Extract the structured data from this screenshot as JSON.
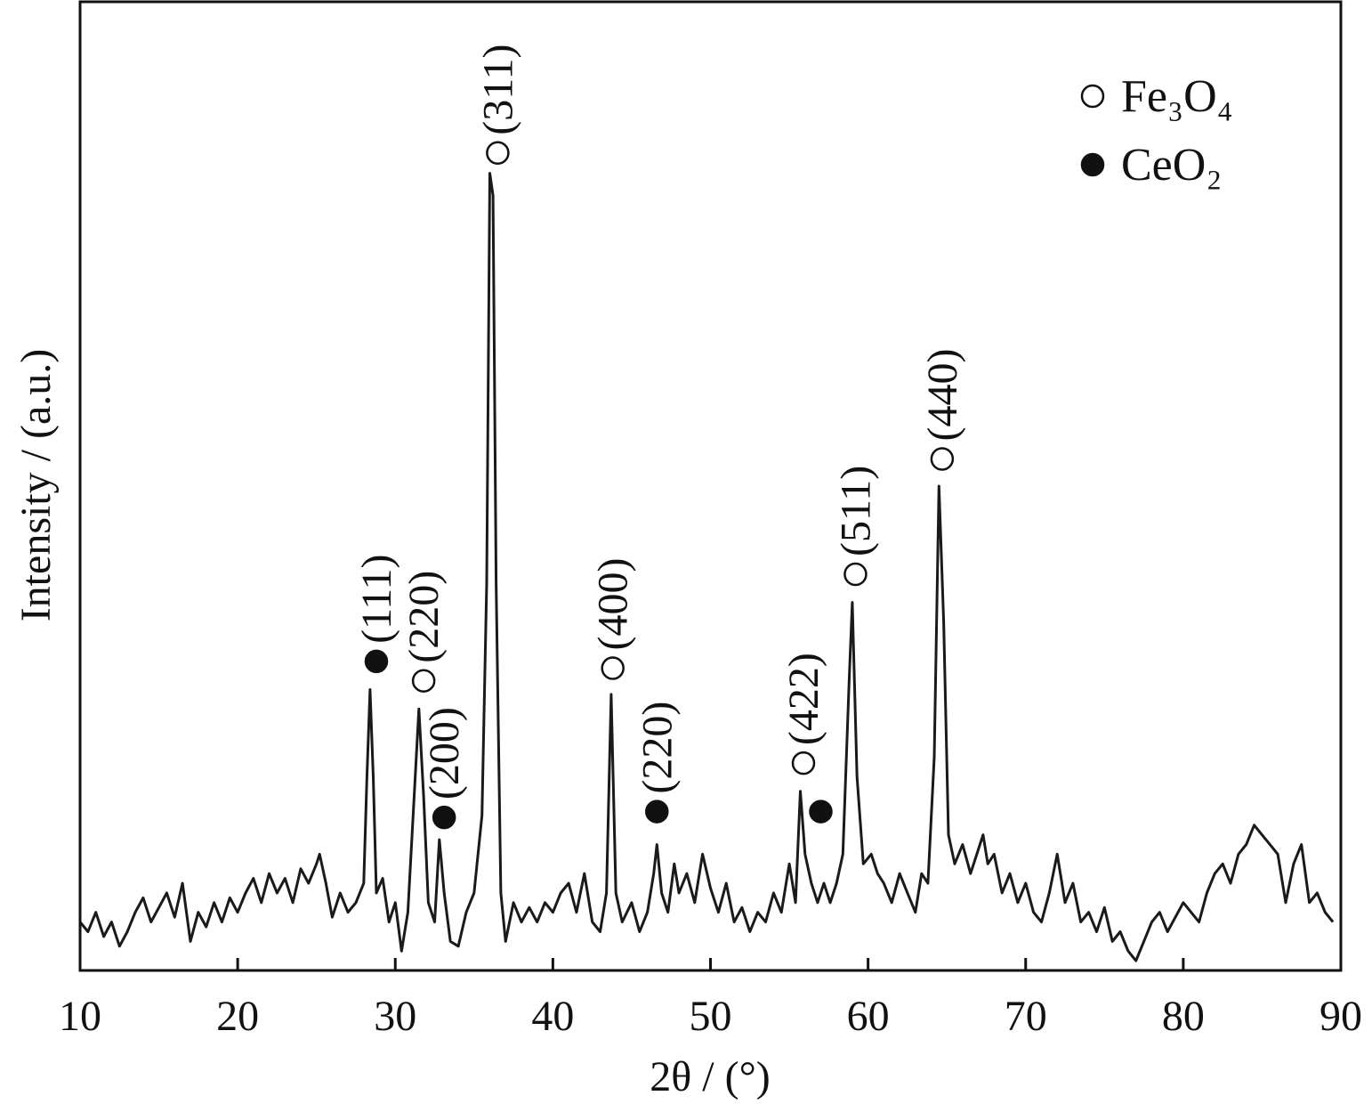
{
  "chart_data": {
    "type": "line",
    "x_label": "2θ / (°)",
    "y_label": "Intensity / (a.u.)",
    "xlim": [
      10,
      90
    ],
    "xticks": [
      10,
      20,
      30,
      40,
      50,
      60,
      70,
      80,
      90
    ],
    "ylim": [
      0,
      100
    ],
    "color": "#1a1a1a",
    "legend": [
      {
        "name": "Fe₃O₄",
        "marker": "open"
      },
      {
        "name": "CeO₂",
        "marker": "filled"
      }
    ],
    "x": [
      10,
      10.5,
      11,
      11.5,
      12,
      12.5,
      13,
      13.5,
      14,
      14.5,
      15,
      15.5,
      16,
      16.5,
      17,
      17.5,
      18,
      18.5,
      19,
      19.5,
      20,
      20.5,
      21,
      21.5,
      22,
      22.5,
      23,
      23.5,
      24,
      24.5,
      25,
      25.2,
      25.6,
      26,
      26.5,
      27,
      27.5,
      28,
      28.2,
      28.4,
      28.6,
      28.8,
      29.2,
      29.6,
      30,
      30.4,
      30.8,
      31.2,
      31.5,
      31.8,
      32.1,
      32.5,
      32.8,
      33.1,
      33.5,
      34,
      34.5,
      35,
      35.5,
      35.8,
      36,
      36.2,
      36.4,
      36.7,
      37,
      37.5,
      38,
      38.5,
      39,
      39.5,
      40,
      40.5,
      41,
      41.5,
      42,
      42.5,
      43,
      43.4,
      43.7,
      44,
      44.4,
      45,
      45.5,
      46,
      46.4,
      46.6,
      46.9,
      47.3,
      47.7,
      48,
      48.5,
      49,
      49.5,
      50,
      50.5,
      51,
      51.5,
      52,
      52.5,
      53,
      53.5,
      54,
      54.5,
      55,
      55.4,
      55.7,
      56,
      56.4,
      56.8,
      57.2,
      57.6,
      58,
      58.4,
      58.8,
      59,
      59.3,
      59.7,
      60.2,
      60.6,
      61,
      61.5,
      62,
      62.5,
      63,
      63.4,
      63.8,
      64.2,
      64.5,
      64.8,
      65.1,
      65.5,
      66,
      66.5,
      67,
      67.3,
      67.6,
      68,
      68.5,
      69,
      69.5,
      70,
      70.5,
      71,
      71.5,
      72,
      72.5,
      73,
      73.5,
      74,
      74.5,
      75,
      75.5,
      76,
      76.5,
      77,
      77.5,
      78,
      78.5,
      79,
      79.5,
      80,
      80.5,
      81,
      81.5,
      82,
      82.5,
      83,
      83.5,
      84,
      84.5,
      85,
      85.5,
      86,
      86.5,
      87,
      87.5,
      88,
      88.5,
      89,
      89.5
    ],
    "values": [
      5,
      4,
      6,
      3.5,
      5,
      2.5,
      4,
      6,
      7.5,
      5,
      6.5,
      8,
      5.5,
      9,
      3,
      6,
      4.5,
      7,
      5,
      7.5,
      6,
      8,
      9.5,
      7,
      10,
      8,
      9.5,
      7,
      10.5,
      9,
      11,
      12,
      9,
      5.5,
      8,
      6,
      7,
      9,
      20,
      29,
      20,
      8,
      9.5,
      5,
      7,
      2,
      6,
      18,
      27,
      18,
      7,
      5,
      13.5,
      8,
      3,
      2.5,
      6,
      8,
      16,
      40,
      82.3,
      80,
      40,
      8,
      3,
      7,
      5,
      6.5,
      5,
      7,
      6,
      8,
      9,
      6,
      10,
      5,
      4,
      8,
      28.5,
      8,
      5,
      7,
      4,
      6,
      10,
      13,
      8,
      6,
      11,
      8,
      10,
      7,
      12,
      8.5,
      6,
      9,
      5,
      6.5,
      4,
      6,
      5,
      8,
      6,
      11,
      7,
      18.5,
      12,
      9,
      7,
      9,
      7,
      9,
      12,
      30,
      38,
      20,
      11,
      12,
      10,
      9,
      7,
      10,
      8,
      6,
      10,
      9,
      22,
      50,
      36,
      14,
      11,
      13,
      10,
      12.5,
      14,
      11,
      12,
      8,
      10,
      7,
      9,
      6,
      5,
      8,
      12,
      7,
      9,
      5,
      6,
      4,
      6.5,
      3,
      4,
      2,
      1,
      3,
      5,
      6,
      4,
      5.5,
      7,
      6,
      5,
      8,
      10,
      11,
      9,
      12,
      13,
      15,
      14,
      13,
      12,
      7,
      11,
      13,
      7,
      8,
      6,
      5
    ],
    "annotations": [
      {
        "text": "(111)",
        "x": 28.8,
        "y": 31.9,
        "marker": "filled"
      },
      {
        "text": "(220)",
        "x": 31.8,
        "y": 29.9,
        "marker": "open"
      },
      {
        "text": "(200)",
        "x": 33.1,
        "y": 15.8,
        "marker": "filled"
      },
      {
        "text": "(311)",
        "x": 36.5,
        "y": 84.4,
        "marker": "open"
      },
      {
        "text": "(400)",
        "x": 43.8,
        "y": 31.2,
        "marker": "open"
      },
      {
        "text": "(220)",
        "x": 46.6,
        "y": 16.4,
        "marker": "filled"
      },
      {
        "text": "(422)",
        "x": 55.9,
        "y": 21.4,
        "marker": "open"
      },
      {
        "x": 57.0,
        "y": 16.4,
        "marker": "filled"
      },
      {
        "text": "(511)",
        "x": 59.2,
        "y": 40.9,
        "marker": "open"
      },
      {
        "text": "(440)",
        "x": 64.7,
        "y": 52.8,
        "marker": "open"
      }
    ]
  }
}
